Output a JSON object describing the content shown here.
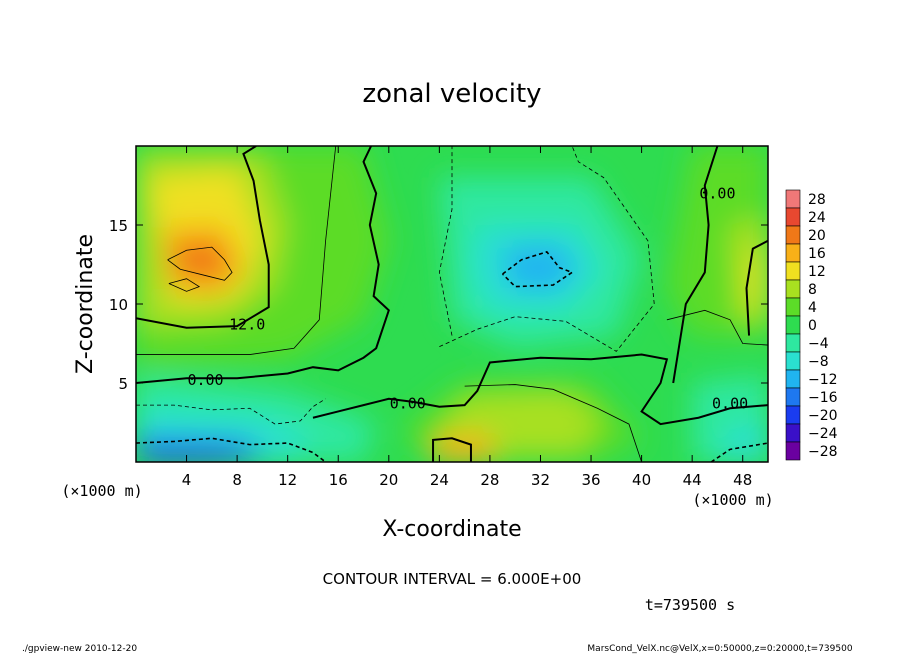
{
  "chart_data": {
    "type": "heatmap",
    "title": "zonal velocity",
    "xlabel": "X-coordinate",
    "ylabel": "Z-coordinate",
    "x_unit": "(×1000 m)",
    "z_unit": "(×1000 m)",
    "x_ticks": [
      "4",
      "8",
      "12",
      "16",
      "20",
      "24",
      "28",
      "32",
      "36",
      "40",
      "44",
      "48"
    ],
    "z_ticks": [
      "5",
      "10",
      "15"
    ],
    "xlim": [
      0,
      50
    ],
    "zlim": [
      0,
      20
    ],
    "colorbar_labels": [
      "28",
      "24",
      "20",
      "16",
      "12",
      "8",
      "4",
      "0",
      "−4",
      "−8",
      "−12",
      "−16",
      "−20",
      "−24",
      "−28"
    ],
    "colorbar_range": [
      -30,
      30
    ],
    "contour_interval": 6.0,
    "contour_labels": [
      {
        "text": "12.0",
        "x": 8.8,
        "z": 8.7
      },
      {
        "text": "0.00",
        "x": 5.5,
        "z": 5.2
      },
      {
        "text": "0.00",
        "x": 21.5,
        "z": 3.7
      },
      {
        "text": "0.00",
        "x": 46.0,
        "z": 17.0
      },
      {
        "text": "0.00",
        "x": 47.0,
        "z": 3.7
      }
    ],
    "field_features": [
      {
        "name": "westerly jet core",
        "x": 6.0,
        "z": 12.5,
        "value": 18
      },
      {
        "name": "easterly core",
        "x": 31.5,
        "z": 12.0,
        "value": -11
      },
      {
        "name": "near-surface easterly",
        "x": 5.0,
        "z": 1.0,
        "value": -18
      },
      {
        "name": "near-surface westerly",
        "x": 26.0,
        "z": 0.8,
        "value": 14
      },
      {
        "name": "eastern westerly",
        "x": 49.5,
        "z": 11.0,
        "value": 12
      }
    ]
  },
  "footer": {
    "contour_interval_text": "CONTOUR INTERVAL = 6.000E+00",
    "time_text": "t=739500 s",
    "program_text": "./gpview-new   2010-12-20",
    "file_text": "MarsCond_VelX.nc@VelX,x=0:50000,z=0:20000,t=739500"
  },
  "colors": {
    "scale": [
      "#6a00a0",
      "#3a10c8",
      "#1a3cf0",
      "#1e78f0",
      "#20b4f0",
      "#2ae0d0",
      "#2ee8a0",
      "#2edc50",
      "#5cdc28",
      "#a8e020",
      "#f0e020",
      "#f8b018",
      "#f07818",
      "#e84830",
      "#f07878"
    ]
  }
}
